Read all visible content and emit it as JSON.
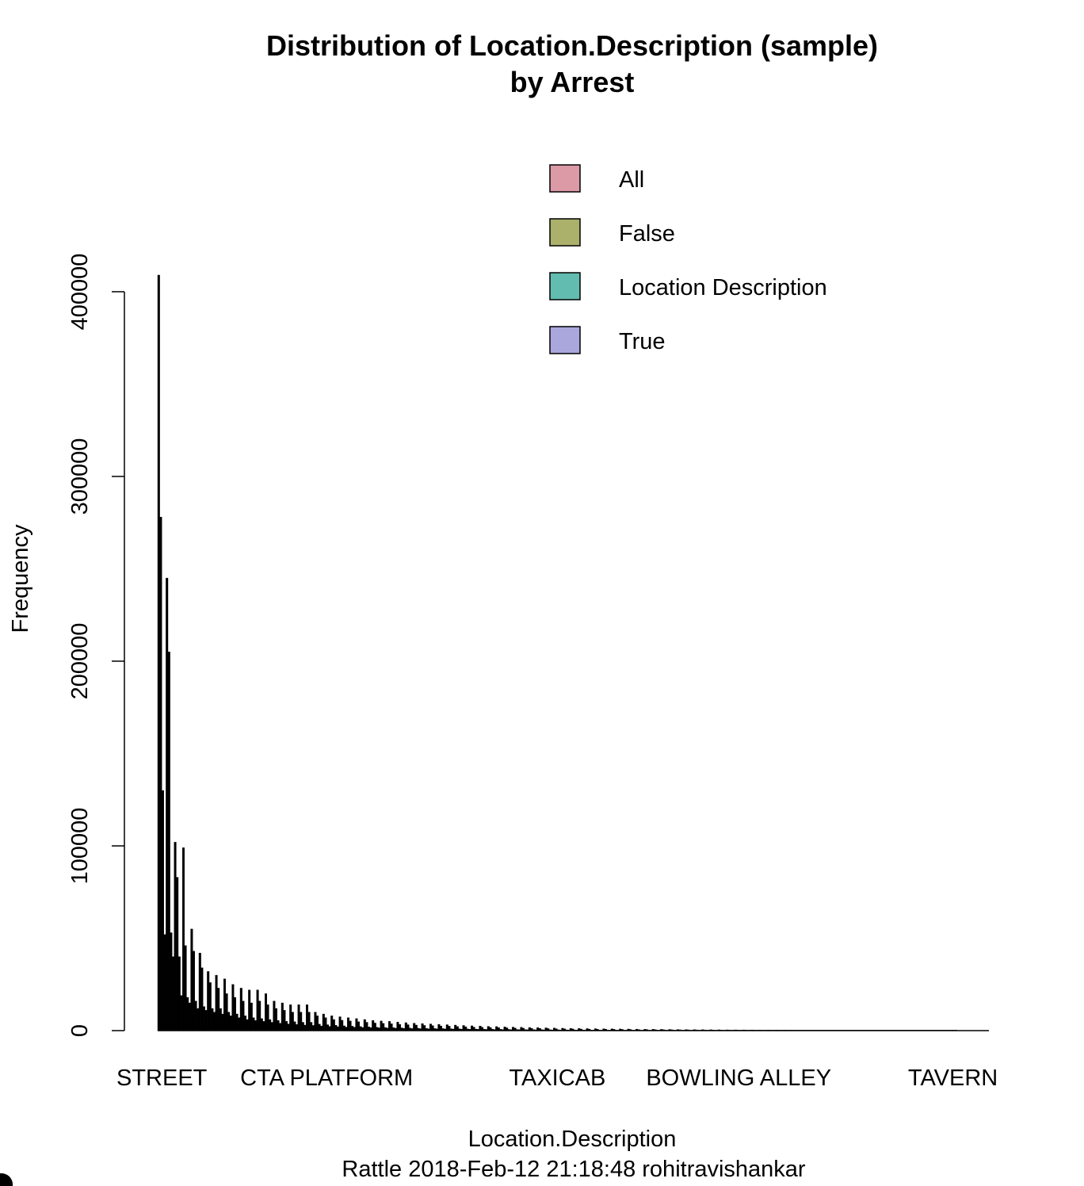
{
  "chart_data": {
    "type": "bar",
    "title": "Distribution of Location.Description (sample)",
    "subtitle": "by Arrest",
    "xlabel": "Location.Description",
    "ylabel": "Frequency",
    "caption": "Rattle 2018-Feb-12 21:18:48 rohitravishankar",
    "ylim": [
      0,
      409000
    ],
    "yticks": [
      0,
      100000,
      200000,
      300000,
      400000
    ],
    "ytick_labels": [
      "0",
      "100000",
      "200000",
      "300000",
      "400000"
    ],
    "x_tick_labels": [
      {
        "label": "STREET",
        "group_index": 0
      },
      {
        "label": "CTA PLATFORM",
        "group_index": 20
      },
      {
        "label": "TAXICAB",
        "group_index": 48
      },
      {
        "label": "BOWLING ALLEY",
        "group_index": 70
      },
      {
        "label": "TAVERN",
        "group_index": 96
      }
    ],
    "legend": {
      "position": "top-right",
      "entries": [
        {
          "name": "All",
          "color": "#DB9AA6"
        },
        {
          "name": "False",
          "color": "#ABB06B"
        },
        {
          "name": "Location Description",
          "color": "#62BCAF"
        },
        {
          "name": "True",
          "color": "#AAA7DC"
        }
      ]
    },
    "bar_fill": "#000000",
    "series": [
      {
        "name": "All",
        "values": [
          409000,
          245000,
          102000,
          99000,
          55000,
          42000,
          32000,
          30000,
          28000,
          25000,
          23000,
          22000,
          22000,
          20000,
          16000,
          15000,
          14000,
          14000,
          14000,
          10000,
          9000,
          8000,
          7500,
          7000,
          6500,
          6000,
          5500,
          5200,
          5000,
          4600,
          4300,
          4000,
          3800,
          3600,
          3400,
          3200,
          3000,
          2800,
          2600,
          2500,
          2300,
          2200,
          2000,
          1900,
          1800,
          1700,
          1600,
          1500,
          1400,
          1300,
          1200,
          1150,
          1100,
          1050,
          1000,
          950,
          900,
          850,
          800,
          760,
          720,
          680,
          640,
          600,
          570,
          540,
          510,
          480,
          450,
          420,
          400,
          380,
          360,
          340,
          320,
          300,
          280,
          260,
          240,
          220,
          200,
          190,
          180,
          170,
          160,
          150,
          140,
          130,
          120,
          110,
          100,
          90,
          80,
          70,
          60,
          50,
          40
        ]
      },
      {
        "name": "False",
        "values": [
          278000,
          205000,
          83000,
          46000,
          43000,
          34000,
          26000,
          23000,
          20000,
          18000,
          16000,
          15000,
          16000,
          14000,
          12000,
          11000,
          10000,
          10000,
          10000,
          8000,
          7000,
          6000,
          5600,
          5200,
          4800,
          4500,
          4100,
          3900,
          3700,
          3400,
          3200,
          3000,
          2800,
          2700,
          2500,
          2400,
          2200,
          2100,
          1900,
          1800,
          1700,
          1600,
          1500,
          1400,
          1300,
          1250,
          1200,
          1100,
          1000,
          950,
          900,
          850,
          800,
          770,
          740,
          700,
          660,
          620,
          590,
          560,
          530,
          500,
          470,
          440,
          420,
          400,
          370,
          350,
          330,
          310,
          290,
          280,
          260,
          250,
          230,
          220,
          200,
          190,
          170,
          160,
          150,
          140,
          130,
          120,
          115,
          110,
          100,
          95,
          85,
          80,
          70,
          65,
          60,
          50,
          45,
          35,
          30
        ]
      },
      {
        "name": "Location Description",
        "values": [
          130000,
          53000,
          40000,
          18000,
          16000,
          13000,
          12000,
          12000,
          10000,
          9000,
          8000,
          7000,
          6500,
          6000,
          5500,
          5000,
          4800,
          4500,
          4500,
          3500,
          3200,
          2900,
          2600,
          2400,
          2200,
          2000,
          1800,
          1700,
          1600,
          1500,
          1400,
          1300,
          1200,
          1150,
          1100,
          1000,
          950,
          900,
          850,
          800,
          750,
          700,
          650,
          600,
          560,
          530,
          500,
          470,
          440,
          410,
          380,
          360,
          340,
          320,
          300,
          290,
          270,
          250,
          240,
          230,
          210,
          200,
          190,
          180,
          170,
          160,
          150,
          140,
          130,
          120,
          115,
          110,
          100,
          95,
          90,
          80,
          75,
          70,
          65,
          60,
          55,
          50,
          48,
          45,
          42,
          40,
          38,
          35,
          32,
          30,
          28,
          25,
          22,
          20,
          18,
          15,
          12
        ]
      },
      {
        "name": "True",
        "values": [
          52000,
          40000,
          19000,
          15000,
          12000,
          11000,
          10000,
          9000,
          8000,
          7000,
          6000,
          5500,
          5000,
          4500,
          4000,
          3600,
          3300,
          3000,
          2800,
          2500,
          2300,
          2100,
          1900,
          1800,
          1700,
          1600,
          1500,
          1400,
          1300,
          1200,
          1100,
          1050,
          1000,
          950,
          900,
          850,
          800,
          750,
          700,
          650,
          600,
          560,
          530,
          500,
          470,
          440,
          410,
          380,
          360,
          340,
          320,
          300,
          280,
          260,
          240,
          230,
          220,
          210,
          200,
          190,
          180,
          170,
          160,
          150,
          140,
          130,
          120,
          110,
          100,
          95,
          90,
          85,
          80,
          75,
          70,
          65,
          60,
          55,
          50,
          45,
          42,
          40,
          38,
          35,
          32,
          30,
          28,
          25,
          22,
          20,
          18,
          15,
          12,
          10,
          8,
          6,
          5
        ]
      }
    ]
  }
}
